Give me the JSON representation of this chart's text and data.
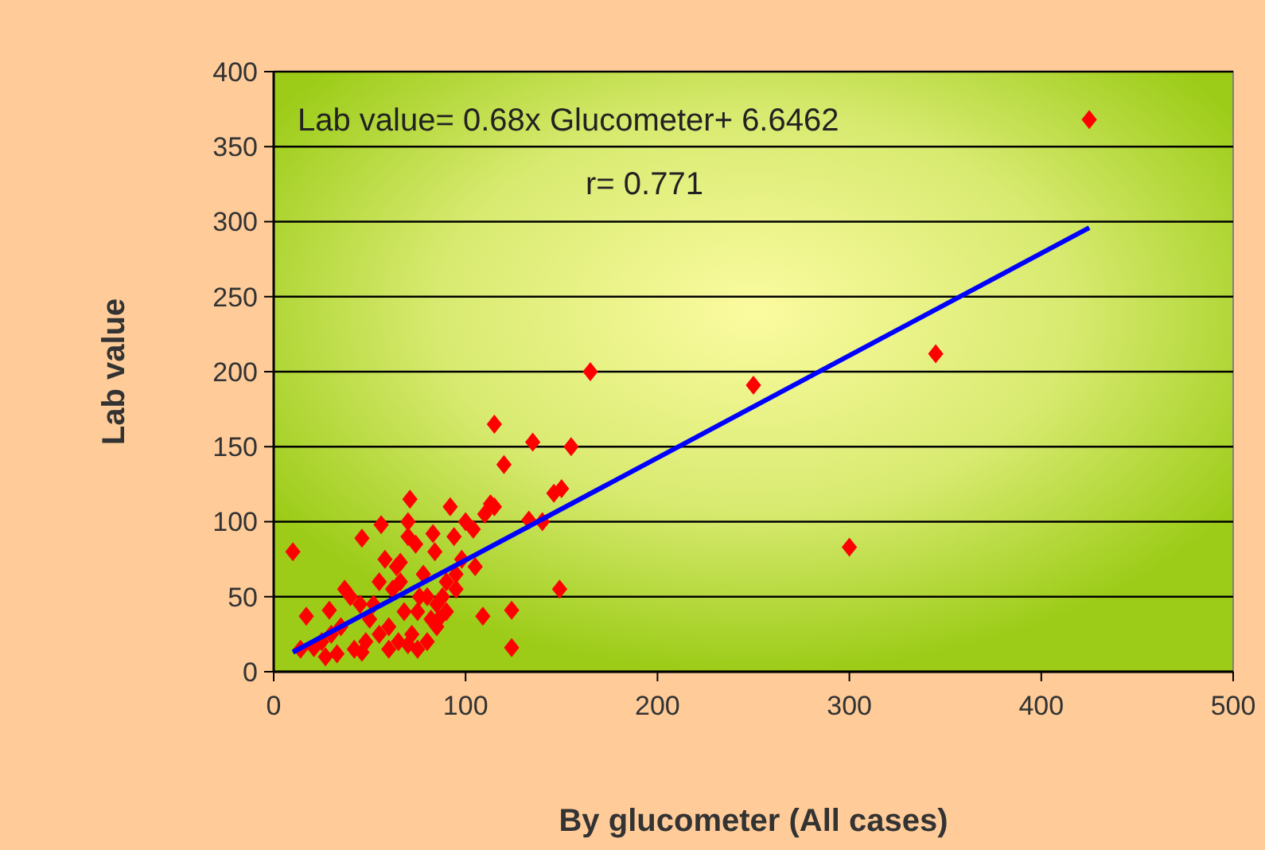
{
  "chart_data": {
    "type": "scatter",
    "xlabel": "By glucometer (All cases)",
    "ylabel": "Lab value",
    "xlim": [
      0,
      500
    ],
    "xticks": [
      0,
      100,
      200,
      300,
      400,
      500
    ],
    "ylim": [
      0,
      400
    ],
    "yticks": [
      0,
      50,
      100,
      150,
      200,
      250,
      300,
      350,
      400
    ],
    "grid": "y",
    "annotations": [
      "Lab value= 0.68x Glucometer+ 6.6462",
      "r= 0.771"
    ],
    "series": [
      {
        "marker": "diamond",
        "color": "#ff0000",
        "x": [
          425,
          345,
          300,
          250,
          165,
          155,
          135,
          115,
          120,
          146,
          150,
          149,
          124,
          124,
          133,
          140,
          113,
          109,
          92,
          100,
          83,
          71,
          70,
          56,
          46,
          37,
          29,
          21,
          14,
          17,
          10,
          46,
          66,
          70,
          60,
          75,
          80,
          85,
          90,
          95,
          105,
          50,
          55,
          65,
          75,
          85,
          95,
          40,
          30,
          25,
          35,
          45,
          55,
          62,
          68,
          72,
          78,
          82,
          88,
          98,
          58,
          48,
          42,
          64,
          74,
          84,
          94,
          104,
          110,
          52,
          66,
          76,
          86,
          33,
          27,
          60,
          90,
          80,
          70,
          115
        ],
        "values": [
          368,
          212,
          83,
          191,
          200,
          150,
          153,
          165,
          138,
          119,
          122,
          55,
          41,
          16,
          101,
          100,
          112,
          37,
          110,
          100,
          92,
          115,
          90,
          98,
          89,
          55,
          41,
          16,
          15,
          37,
          80,
          13,
          73,
          18,
          30,
          40,
          50,
          45,
          60,
          55,
          70,
          35,
          25,
          20,
          15,
          30,
          65,
          50,
          25,
          20,
          30,
          45,
          60,
          55,
          40,
          25,
          65,
          35,
          50,
          75,
          75,
          20,
          15,
          70,
          85,
          80,
          90,
          95,
          105,
          45,
          60,
          50,
          35,
          12,
          10,
          15,
          40,
          20,
          100,
          110
        ]
      },
      {
        "type": "line",
        "marker": "none",
        "line_style": "solid",
        "color": "#0000ff",
        "x": [
          10,
          425
        ],
        "values": [
          13,
          296
        ]
      }
    ]
  }
}
